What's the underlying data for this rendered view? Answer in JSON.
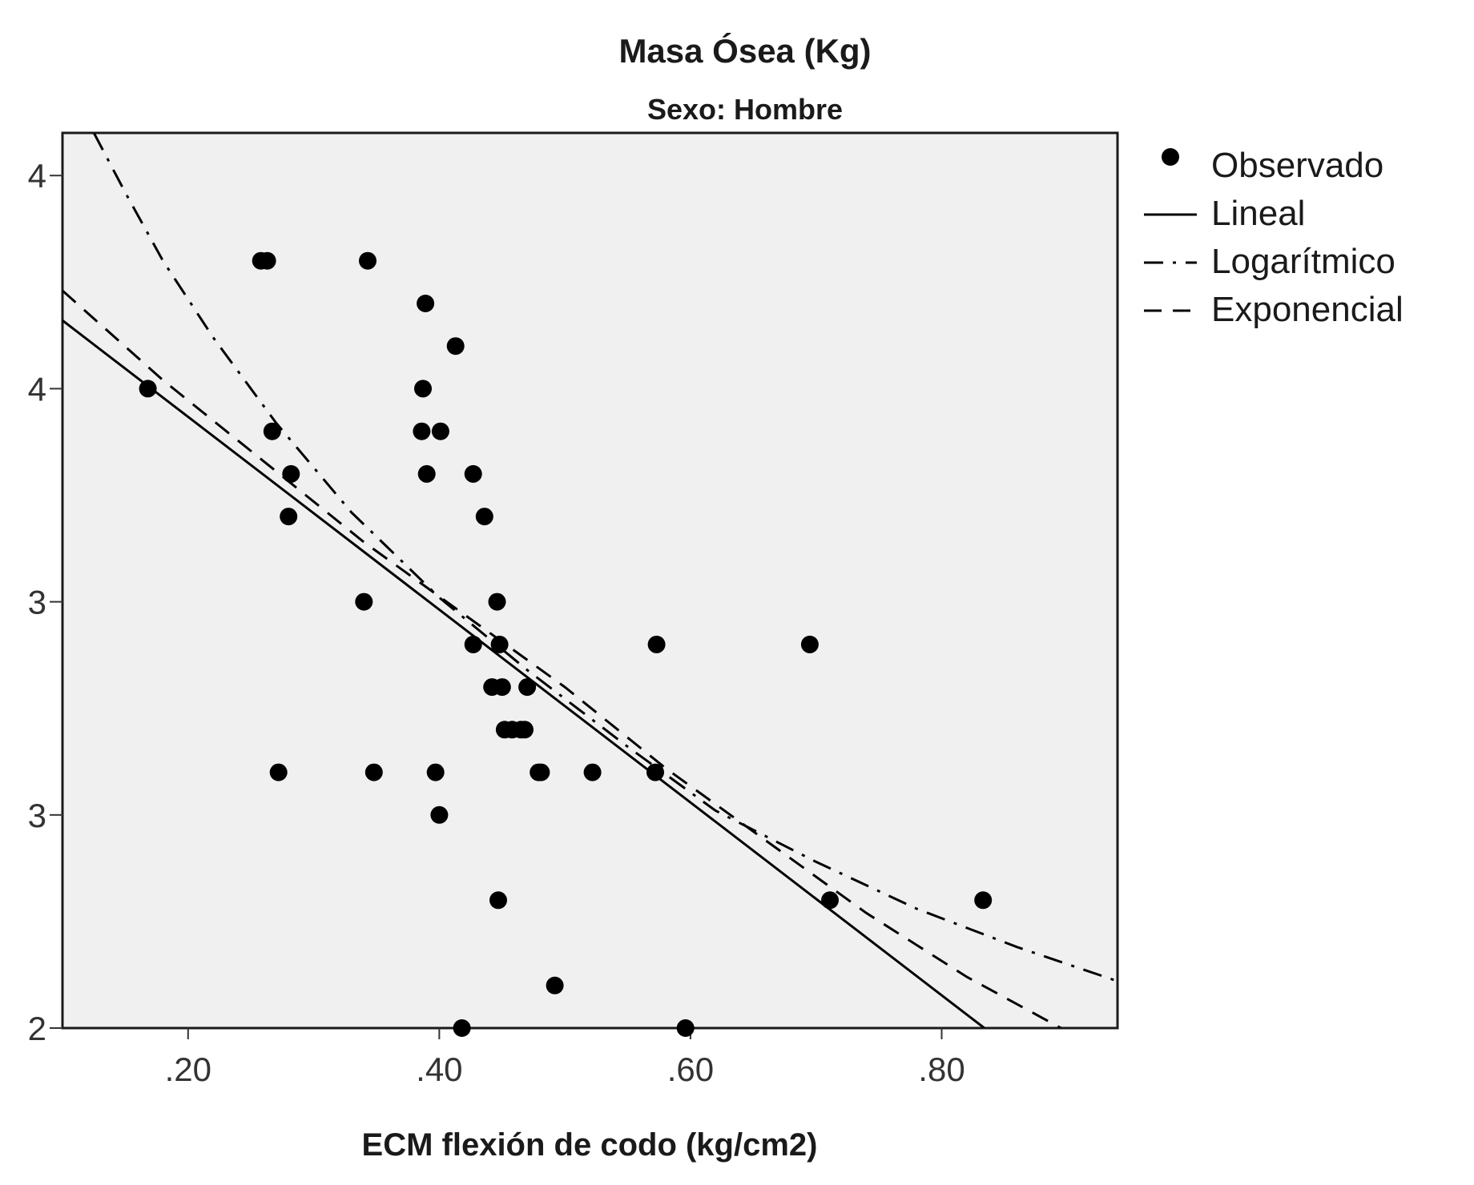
{
  "chart_data": {
    "type": "scatter",
    "title": "Masa Ósea (Kg)",
    "subtitle": "Sexo: Hombre",
    "xlabel": "ECM flexión de codo (kg/cm2)",
    "ylabel": "",
    "xlim": [
      0.1,
      0.94
    ],
    "ylim": [
      2.0,
      4.1
    ],
    "x_ticks": [
      {
        "value": 0.2,
        "label": ".20"
      },
      {
        "value": 0.4,
        "label": ".40"
      },
      {
        "value": 0.6,
        "label": ".60"
      },
      {
        "value": 0.8,
        "label": ".80"
      }
    ],
    "y_ticks": [
      {
        "value": 2.0,
        "label": "2"
      },
      {
        "value": 2.5,
        "label": "3"
      },
      {
        "value": 3.0,
        "label": "3"
      },
      {
        "value": 3.5,
        "label": "4"
      },
      {
        "value": 4.0,
        "label": "4"
      }
    ],
    "grid": false,
    "background": "#f0f0f0",
    "legend_position": "right",
    "series": [
      {
        "name": "Observado",
        "type": "scatter",
        "color": "#000000",
        "points": [
          [
            0.168,
            3.5
          ],
          [
            0.258,
            3.8
          ],
          [
            0.263,
            3.8
          ],
          [
            0.343,
            3.8
          ],
          [
            0.389,
            3.7
          ],
          [
            0.413,
            3.6
          ],
          [
            0.387,
            3.5
          ],
          [
            0.267,
            3.4
          ],
          [
            0.386,
            3.4
          ],
          [
            0.401,
            3.4
          ],
          [
            0.282,
            3.3
          ],
          [
            0.39,
            3.3
          ],
          [
            0.427,
            3.3
          ],
          [
            0.28,
            3.2
          ],
          [
            0.436,
            3.2
          ],
          [
            0.34,
            3.0
          ],
          [
            0.446,
            3.0
          ],
          [
            0.427,
            2.9
          ],
          [
            0.448,
            2.9
          ],
          [
            0.573,
            2.9
          ],
          [
            0.695,
            2.9
          ],
          [
            0.442,
            2.8
          ],
          [
            0.45,
            2.8
          ],
          [
            0.47,
            2.8
          ],
          [
            0.452,
            2.7
          ],
          [
            0.458,
            2.7
          ],
          [
            0.465,
            2.7
          ],
          [
            0.468,
            2.7
          ],
          [
            0.272,
            2.6
          ],
          [
            0.348,
            2.6
          ],
          [
            0.397,
            2.6
          ],
          [
            0.479,
            2.6
          ],
          [
            0.481,
            2.6
          ],
          [
            0.522,
            2.6
          ],
          [
            0.572,
            2.6
          ],
          [
            0.4,
            2.5
          ],
          [
            0.447,
            2.3
          ],
          [
            0.711,
            2.3
          ],
          [
            0.833,
            2.3
          ],
          [
            0.492,
            2.1
          ],
          [
            0.418,
            2.0
          ],
          [
            0.596,
            2.0
          ]
        ]
      },
      {
        "name": "Lineal",
        "type": "line",
        "color": "#000000",
        "dash": "solid",
        "points": [
          [
            0.1,
            3.66
          ],
          [
            0.834,
            2.0
          ]
        ]
      },
      {
        "name": "Logarítmico",
        "type": "line",
        "color": "#000000",
        "dash": "dashdot",
        "points": [
          [
            0.125,
            4.1
          ],
          [
            0.15,
            3.96
          ],
          [
            0.18,
            3.8
          ],
          [
            0.22,
            3.62
          ],
          [
            0.27,
            3.42
          ],
          [
            0.33,
            3.21
          ],
          [
            0.4,
            3.01
          ],
          [
            0.47,
            2.84
          ],
          [
            0.55,
            2.66
          ],
          [
            0.62,
            2.51
          ],
          [
            0.7,
            2.39
          ],
          [
            0.78,
            2.28
          ],
          [
            0.86,
            2.19
          ],
          [
            0.94,
            2.11
          ]
        ]
      },
      {
        "name": "Exponencial",
        "type": "line",
        "color": "#000000",
        "dash": "dashed",
        "points": [
          [
            0.1,
            3.73
          ],
          [
            0.18,
            3.52
          ],
          [
            0.26,
            3.33
          ],
          [
            0.34,
            3.14
          ],
          [
            0.42,
            2.97
          ],
          [
            0.5,
            2.8
          ],
          [
            0.58,
            2.61
          ],
          [
            0.66,
            2.44
          ],
          [
            0.74,
            2.27
          ],
          [
            0.82,
            2.12
          ],
          [
            0.895,
            2.0
          ]
        ]
      }
    ]
  }
}
